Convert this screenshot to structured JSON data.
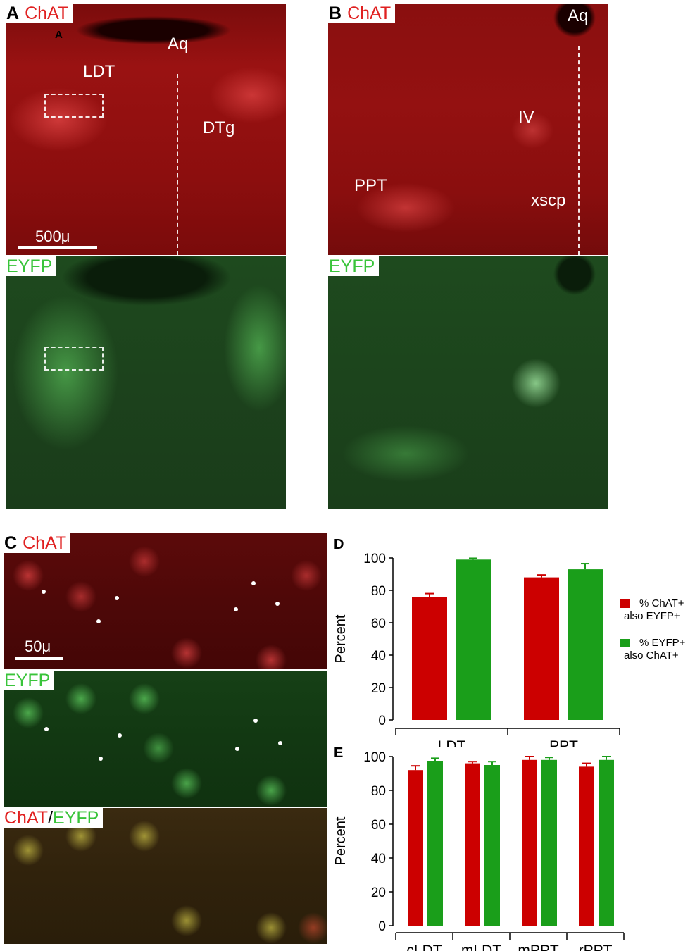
{
  "panel_a": {
    "letter": "A",
    "stain_top": "ChAT",
    "stain_bottom": "EYFP",
    "sub_letter": "A",
    "labels": {
      "aq": "Aq",
      "ldt": "LDT",
      "dtg": "DTg"
    },
    "scale_label": "500μ"
  },
  "panel_b": {
    "letter": "B",
    "stain_top": "ChAT",
    "stain_bottom": "EYFP",
    "labels": {
      "aq": "Aq",
      "iv": "IV",
      "ppt": "PPT",
      "xscp": "xscp"
    }
  },
  "panel_c": {
    "letter": "C",
    "stain_top": "ChAT",
    "stain_mid": "EYFP",
    "merge_red": "ChAT",
    "merge_sep": "/",
    "merge_green": "EYFP",
    "scale_label": "50μ"
  },
  "colors": {
    "red_bar": "#cc0000",
    "green_bar": "#1a9e1a"
  },
  "legend": {
    "item1_line1": "% ChAT+",
    "item1_line2": "also EYFP+",
    "item2_line1": "% EYFP+",
    "item2_line2": "also ChAT+"
  },
  "chart_data": [
    {
      "panel": "D",
      "type": "bar",
      "ylabel": "Percent",
      "ylim": [
        0,
        100
      ],
      "yticks": [
        "0",
        "20",
        "40",
        "60",
        "80",
        "100"
      ],
      "categories": [
        "LDT",
        "PPT"
      ],
      "series": [
        {
          "name": "% ChAT+ also EYFP+",
          "values": [
            76,
            88
          ],
          "errors": [
            2,
            1.5
          ]
        },
        {
          "name": "% EYFP+ also ChAT+",
          "values": [
            99,
            93
          ],
          "errors": [
            0.8,
            3.5
          ]
        }
      ]
    },
    {
      "panel": "E",
      "type": "bar",
      "ylabel": "Percent",
      "ylim": [
        0,
        100
      ],
      "yticks": [
        "0",
        "20",
        "40",
        "60",
        "80",
        "100"
      ],
      "categories": [
        "cLDT",
        "mLDT",
        "mPPT",
        "rPPT"
      ],
      "series": [
        {
          "name": "% ChAT+ also EYFP+",
          "values": [
            92,
            96,
            98,
            94
          ],
          "errors": [
            2.5,
            1,
            2,
            2
          ]
        },
        {
          "name": "% EYFP+ also ChAT+",
          "values": [
            97.5,
            95,
            98,
            98
          ],
          "errors": [
            1.5,
            2,
            1.5,
            2
          ]
        }
      ]
    }
  ]
}
